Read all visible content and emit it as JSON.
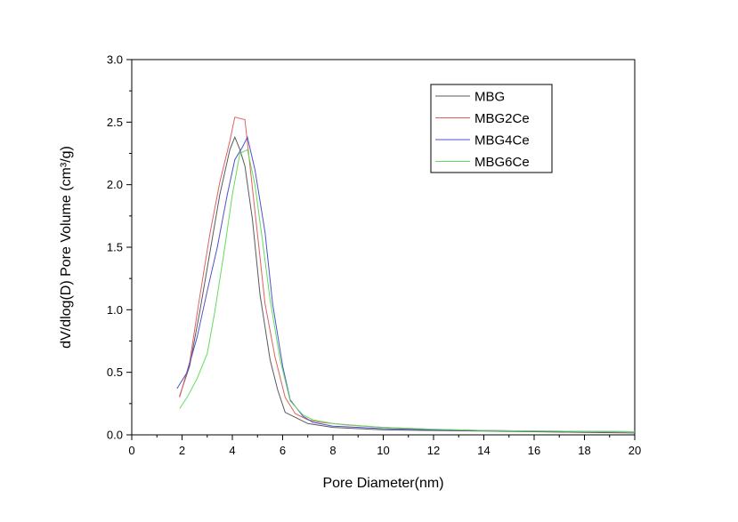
{
  "chart_data": {
    "type": "line",
    "title": "",
    "xlabel": "Pore Diameter(nm)",
    "ylabel": "dV/dlog(D) Pore Volume (cm³/g)",
    "xlim": [
      0,
      20
    ],
    "ylim": [
      0,
      3.0
    ],
    "xticks": [
      "0",
      "2",
      "4",
      "6",
      "8",
      "10",
      "12",
      "14",
      "16",
      "18",
      "20"
    ],
    "yticks": [
      "0.0",
      "0.5",
      "1.0",
      "1.5",
      "2.0",
      "2.5",
      "3.0"
    ],
    "grid": false,
    "legend_position": "top-right",
    "series": [
      {
        "name": "MBG",
        "color": "#5a5a5a",
        "points": [
          [
            1.9,
            0.31
          ],
          [
            2.3,
            0.55
          ],
          [
            2.7,
            0.98
          ],
          [
            3.1,
            1.45
          ],
          [
            3.5,
            1.92
          ],
          [
            3.9,
            2.28
          ],
          [
            4.1,
            2.38
          ],
          [
            4.3,
            2.28
          ],
          [
            4.5,
            2.15
          ],
          [
            4.8,
            1.72
          ],
          [
            5.1,
            1.12
          ],
          [
            5.5,
            0.6
          ],
          [
            5.8,
            0.36
          ],
          [
            6.1,
            0.18
          ],
          [
            6.5,
            0.14
          ],
          [
            7.0,
            0.09
          ],
          [
            8.0,
            0.06
          ],
          [
            9.0,
            0.05
          ],
          [
            10,
            0.04
          ],
          [
            12,
            0.035
          ],
          [
            14,
            0.03
          ],
          [
            16,
            0.025
          ],
          [
            18,
            0.02
          ],
          [
            20,
            0.015
          ]
        ]
      },
      {
        "name": "MBG2Ce",
        "color": "#e06060",
        "points": [
          [
            1.9,
            0.3
          ],
          [
            2.3,
            0.58
          ],
          [
            2.7,
            1.1
          ],
          [
            3.1,
            1.6
          ],
          [
            3.5,
            2.02
          ],
          [
            3.9,
            2.35
          ],
          [
            4.1,
            2.54
          ],
          [
            4.5,
            2.52
          ],
          [
            4.7,
            2.15
          ],
          [
            5.0,
            1.6
          ],
          [
            5.3,
            1.05
          ],
          [
            5.7,
            0.62
          ],
          [
            6.1,
            0.3
          ],
          [
            6.5,
            0.17
          ],
          [
            7.0,
            0.12
          ],
          [
            7.5,
            0.1
          ],
          [
            8.5,
            0.08
          ],
          [
            10,
            0.06
          ],
          [
            12,
            0.045
          ],
          [
            14,
            0.035
          ],
          [
            16,
            0.03
          ],
          [
            18,
            0.028
          ],
          [
            20,
            0.025
          ]
        ]
      },
      {
        "name": "MBG4Ce",
        "color": "#5050cc",
        "points": [
          [
            1.8,
            0.37
          ],
          [
            2.2,
            0.5
          ],
          [
            2.6,
            0.78
          ],
          [
            3.0,
            1.15
          ],
          [
            3.4,
            1.5
          ],
          [
            3.8,
            1.92
          ],
          [
            4.1,
            2.2
          ],
          [
            4.4,
            2.3
          ],
          [
            4.6,
            2.38
          ],
          [
            4.9,
            2.12
          ],
          [
            5.3,
            1.62
          ],
          [
            5.6,
            1.05
          ],
          [
            6.0,
            0.55
          ],
          [
            6.3,
            0.28
          ],
          [
            6.8,
            0.15
          ],
          [
            7.2,
            0.1
          ],
          [
            8.0,
            0.07
          ],
          [
            10,
            0.05
          ],
          [
            12,
            0.04
          ],
          [
            14,
            0.035
          ],
          [
            16,
            0.03
          ],
          [
            18,
            0.028
          ],
          [
            20,
            0.025
          ]
        ]
      },
      {
        "name": "MBG6Ce",
        "color": "#60dd60",
        "points": [
          [
            1.9,
            0.21
          ],
          [
            2.2,
            0.3
          ],
          [
            2.6,
            0.45
          ],
          [
            3.0,
            0.65
          ],
          [
            3.3,
            0.98
          ],
          [
            3.7,
            1.5
          ],
          [
            4.0,
            1.92
          ],
          [
            4.3,
            2.25
          ],
          [
            4.6,
            2.28
          ],
          [
            4.9,
            2.0
          ],
          [
            5.2,
            1.55
          ],
          [
            5.5,
            1.08
          ],
          [
            5.9,
            0.6
          ],
          [
            6.3,
            0.27
          ],
          [
            6.8,
            0.16
          ],
          [
            7.2,
            0.12
          ],
          [
            8.0,
            0.09
          ],
          [
            10,
            0.06
          ],
          [
            12,
            0.045
          ],
          [
            14,
            0.035
          ],
          [
            16,
            0.03
          ],
          [
            18,
            0.028
          ],
          [
            20,
            0.025
          ]
        ]
      }
    ]
  }
}
